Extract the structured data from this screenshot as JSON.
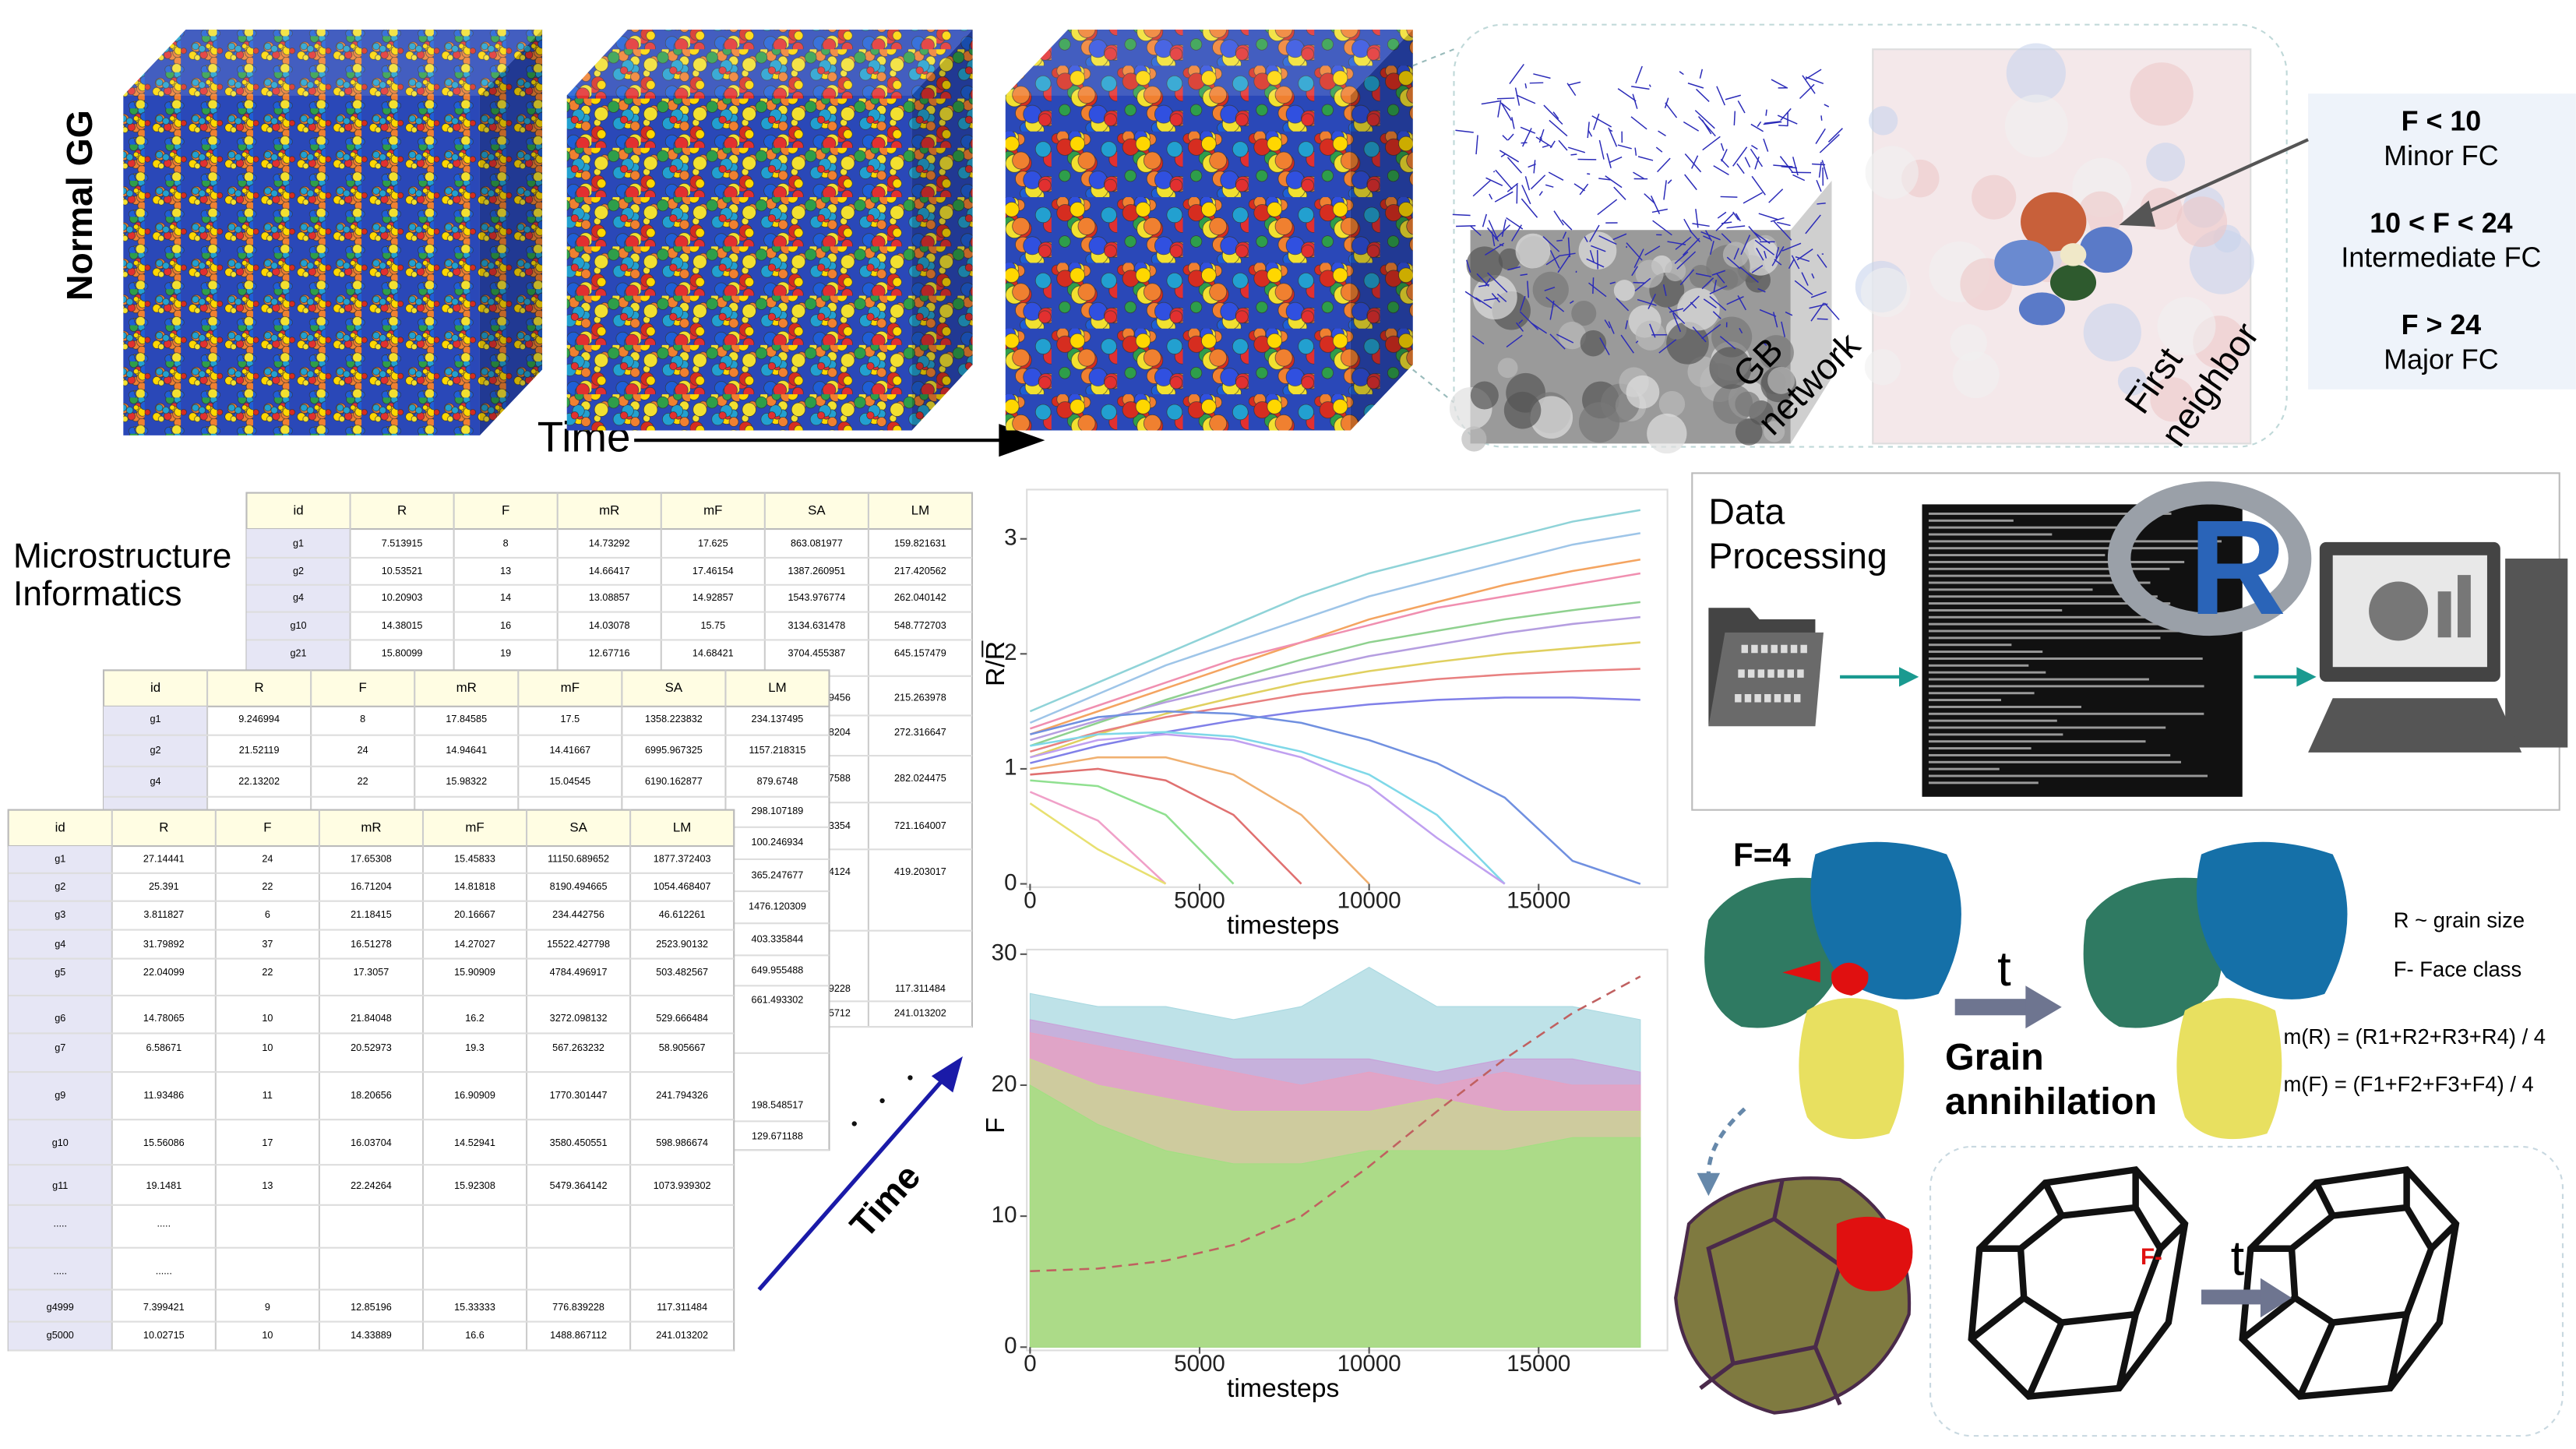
{
  "figure": {
    "normal_gg": "Normal GG",
    "time": "Time",
    "gb_network": [
      "GB",
      "network"
    ],
    "first_neighbor": [
      "First",
      "neighbor"
    ],
    "face_classes": [
      {
        "rule": "F < 10",
        "name": "Minor FC"
      },
      {
        "rule": "10 < F < 24",
        "name": "Intermediate FC"
      },
      {
        "rule": "F > 24",
        "name": "Major FC"
      }
    ]
  },
  "informatics": {
    "title": [
      "Microstructure",
      "Informatics"
    ],
    "time": "Time",
    "tables": [
      {
        "columns": [
          "id",
          "R",
          "F",
          "mR",
          "mF",
          "SA",
          "LM"
        ],
        "rows": [
          [
            "g1",
            "7.513915",
            "8",
            "14.73292",
            "17.625",
            "863.081977",
            "159.821631"
          ],
          [
            "g2",
            "10.53521",
            "13",
            "14.66417",
            "17.46154",
            "1387.260951",
            "217.420562"
          ],
          [
            "g4",
            "10.20903",
            "14",
            "13.08857",
            "14.92857",
            "1543.976774",
            "262.040142"
          ],
          [
            "g10",
            "14.38015",
            "16",
            "14.03078",
            "15.75",
            "3134.631478",
            "548.772703"
          ],
          [
            "g21",
            "15.80099",
            "19",
            "12.67716",
            "14.68421",
            "3704.455387",
            "645.157479"
          ]
        ],
        "partial_rows": [
          [
            "9456",
            "215.263978"
          ],
          [
            "8204",
            "272.316647"
          ],
          [
            "7588",
            "282.024475"
          ],
          [
            "3354",
            "721.164007"
          ],
          [
            "4124",
            "419.203017"
          ],
          [
            "9228",
            "117.311484"
          ],
          [
            "5712",
            "241.013202"
          ]
        ]
      },
      {
        "columns": [
          "id",
          "R",
          "F",
          "mR",
          "mF",
          "SA",
          "LM"
        ],
        "rows": [
          [
            "g1",
            "9.246994",
            "8",
            "17.84585",
            "17.5",
            "1358.223832",
            "234.137495"
          ],
          [
            "g2",
            "21.52119",
            "24",
            "14.94641",
            "14.41667",
            "6995.967325",
            "1157.218315"
          ],
          [
            "g4",
            "22.13202",
            "22",
            "15.98322",
            "15.04545",
            "6190.162877",
            "879.6748"
          ]
        ],
        "partial_rows": [
          [
            "298.107189"
          ],
          [
            "100.246934"
          ],
          [
            "365.247677"
          ],
          [
            "1476.120309"
          ],
          [
            "403.335844"
          ],
          [
            "649.955488"
          ],
          [
            "661.493302"
          ],
          [
            "198.548517"
          ],
          [
            "129.671188"
          ]
        ]
      },
      {
        "columns": [
          "id",
          "R",
          "F",
          "mR",
          "mF",
          "SA",
          "LM"
        ],
        "rows": [
          [
            "g1",
            "27.14441",
            "24",
            "17.65308",
            "15.45833",
            "11150.689652",
            "1877.372403"
          ],
          [
            "g2",
            "25.391",
            "22",
            "16.71204",
            "14.81818",
            "8190.494665",
            "1054.468407"
          ],
          [
            "g3",
            "3.811827",
            "6",
            "21.18415",
            "20.16667",
            "234.442756",
            "46.612261"
          ],
          [
            "g4",
            "31.79892",
            "37",
            "16.51278",
            "14.27027",
            "15522.427798",
            "2523.90132"
          ],
          [
            "g5",
            "22.04099",
            "22",
            "17.3057",
            "15.90909",
            "4784.496917",
            "503.482567"
          ],
          [
            "g6",
            "14.78065",
            "10",
            "21.84048",
            "16.2",
            "3272.098132",
            "529.666484"
          ],
          [
            "g7",
            "6.58671",
            "10",
            "20.52973",
            "19.3",
            "567.263232",
            "58.905667"
          ],
          [
            "g9",
            "11.93486",
            "11",
            "18.20656",
            "16.90909",
            "1770.301447",
            "241.794326"
          ],
          [
            "g10",
            "15.56086",
            "17",
            "16.03704",
            "14.52941",
            "3580.450551",
            "598.986674"
          ],
          [
            "g11",
            "19.1481",
            "13",
            "22.24264",
            "15.92308",
            "5479.364142",
            "1073.939302"
          ],
          [
            ".....",
            "....."
          ],
          [
            ".....",
            "......"
          ],
          [
            "g4999",
            "7.399421",
            "9",
            "12.85196",
            "15.33333",
            "776.839228",
            "117.311484"
          ],
          [
            "g5000",
            "10.02715",
            "10",
            "14.33889",
            "16.6",
            "1488.867112",
            "241.013202"
          ]
        ]
      }
    ]
  },
  "chart_data": [
    {
      "type": "line",
      "xlabel": "timesteps",
      "ylabel": "R/R",
      "x": [
        0,
        2000,
        4000,
        6000,
        8000,
        10000,
        12000,
        14000,
        16000,
        18000
      ],
      "xlim": [
        0,
        18800
      ],
      "ylim": [
        0,
        3.4
      ],
      "xticks": [
        0,
        5000,
        10000,
        15000
      ],
      "yticks": [
        0,
        1,
        2,
        3
      ],
      "series": [
        {
          "color": "#8fd3d8",
          "values": [
            1.5,
            1.75,
            2.0,
            2.25,
            2.5,
            2.7,
            2.85,
            3.0,
            3.15,
            3.25
          ]
        },
        {
          "color": "#9ec5e8",
          "values": [
            1.4,
            1.65,
            1.9,
            2.1,
            2.3,
            2.5,
            2.65,
            2.8,
            2.95,
            3.05
          ]
        },
        {
          "color": "#f4a460",
          "values": [
            1.3,
            1.5,
            1.7,
            1.9,
            2.1,
            2.3,
            2.45,
            2.6,
            2.72,
            2.82
          ]
        },
        {
          "color": "#f08fb0",
          "values": [
            1.35,
            1.55,
            1.75,
            1.95,
            2.1,
            2.25,
            2.4,
            2.5,
            2.6,
            2.7
          ]
        },
        {
          "color": "#8fd18f",
          "values": [
            1.2,
            1.4,
            1.6,
            1.78,
            1.95,
            2.1,
            2.2,
            2.3,
            2.38,
            2.45
          ]
        },
        {
          "color": "#b59ee0",
          "values": [
            1.25,
            1.42,
            1.58,
            1.72,
            1.85,
            1.98,
            2.08,
            2.18,
            2.26,
            2.32
          ]
        },
        {
          "color": "#e0d060",
          "values": [
            1.1,
            1.3,
            1.48,
            1.62,
            1.75,
            1.85,
            1.93,
            2.0,
            2.05,
            2.1
          ]
        },
        {
          "color": "#e88080",
          "values": [
            1.15,
            1.32,
            1.45,
            1.55,
            1.65,
            1.72,
            1.78,
            1.82,
            1.85,
            1.87
          ]
        },
        {
          "color": "#8080e8",
          "values": [
            1.05,
            1.2,
            1.32,
            1.42,
            1.5,
            1.56,
            1.6,
            1.62,
            1.62,
            1.6
          ]
        },
        {
          "color": "#7fd8e8",
          "values": [
            1.2,
            1.3,
            1.32,
            1.28,
            1.15,
            0.95,
            0.6,
            0,
            null,
            null
          ]
        },
        {
          "color": "#f0b070",
          "values": [
            1.0,
            1.1,
            1.1,
            0.95,
            0.6,
            0,
            null,
            null,
            null,
            null
          ]
        },
        {
          "color": "#90e090",
          "values": [
            0.9,
            0.85,
            0.6,
            0,
            null,
            null,
            null,
            null,
            null,
            null
          ]
        },
        {
          "color": "#f0a0c8",
          "values": [
            0.8,
            0.55,
            0,
            null,
            null,
            null,
            null,
            null,
            null,
            null
          ]
        },
        {
          "color": "#c0a0f0",
          "values": [
            1.1,
            1.25,
            1.3,
            1.25,
            1.1,
            0.85,
            0.4,
            0,
            null,
            null
          ]
        },
        {
          "color": "#e8e070",
          "values": [
            0.7,
            0.3,
            0,
            null,
            null,
            null,
            null,
            null,
            null,
            null
          ]
        },
        {
          "color": "#7090e0",
          "values": [
            1.3,
            1.45,
            1.5,
            1.48,
            1.4,
            1.25,
            1.05,
            0.75,
            0.2,
            0
          ]
        },
        {
          "color": "#e07070",
          "values": [
            0.95,
            1.0,
            0.9,
            0.6,
            0,
            null,
            null,
            null,
            null,
            null
          ]
        }
      ]
    },
    {
      "type": "area",
      "xlabel": "timesteps",
      "ylabel": "F",
      "x": [
        0,
        2000,
        4000,
        6000,
        8000,
        10000,
        12000,
        14000,
        16000,
        18000
      ],
      "xlim": [
        0,
        18800
      ],
      "ylim": [
        0,
        30.1
      ],
      "xticks": [
        0,
        5000,
        10000,
        15000
      ],
      "yticks": [
        0,
        10,
        20,
        30
      ],
      "series": [
        {
          "color": "#a8d8e0",
          "values": [
            27,
            26,
            26,
            25,
            26,
            29,
            26,
            26,
            26,
            25
          ]
        },
        {
          "color": "#c8a0d8",
          "values": [
            25,
            24,
            23,
            22,
            22,
            22,
            21,
            22,
            22,
            21
          ]
        },
        {
          "color": "#e8a0c0",
          "values": [
            24,
            23,
            22,
            21,
            20,
            21,
            20,
            21,
            20,
            20
          ]
        },
        {
          "color": "#c8d890",
          "values": [
            22,
            20,
            19,
            18,
            18,
            18,
            19,
            18,
            18,
            18
          ]
        },
        {
          "color": "#a0e080",
          "values": [
            20,
            17,
            15,
            14,
            14,
            15,
            15,
            15,
            16,
            16
          ]
        },
        {
          "color": "#c06060",
          "mark": "line",
          "line_style": "dashed",
          "values": [
            5.8,
            6,
            6.6,
            7.8,
            10,
            13.8,
            18,
            22,
            25.5,
            28.3
          ]
        }
      ]
    }
  ],
  "processing": {
    "title": [
      "Data",
      "Processing"
    ],
    "logo": "R"
  },
  "annihilation": {
    "label": "F=4",
    "t": "t",
    "title": [
      "Grain",
      "annihilation"
    ],
    "legend": [
      "R ~ grain size",
      "F- Face class"
    ],
    "formulas": [
      "m(R) = (R1+R2+R3+R4) / 4",
      "m(F) =  (F1+F2+F3+F4) / 4"
    ],
    "face_marker": "F-",
    "t2": "t"
  }
}
